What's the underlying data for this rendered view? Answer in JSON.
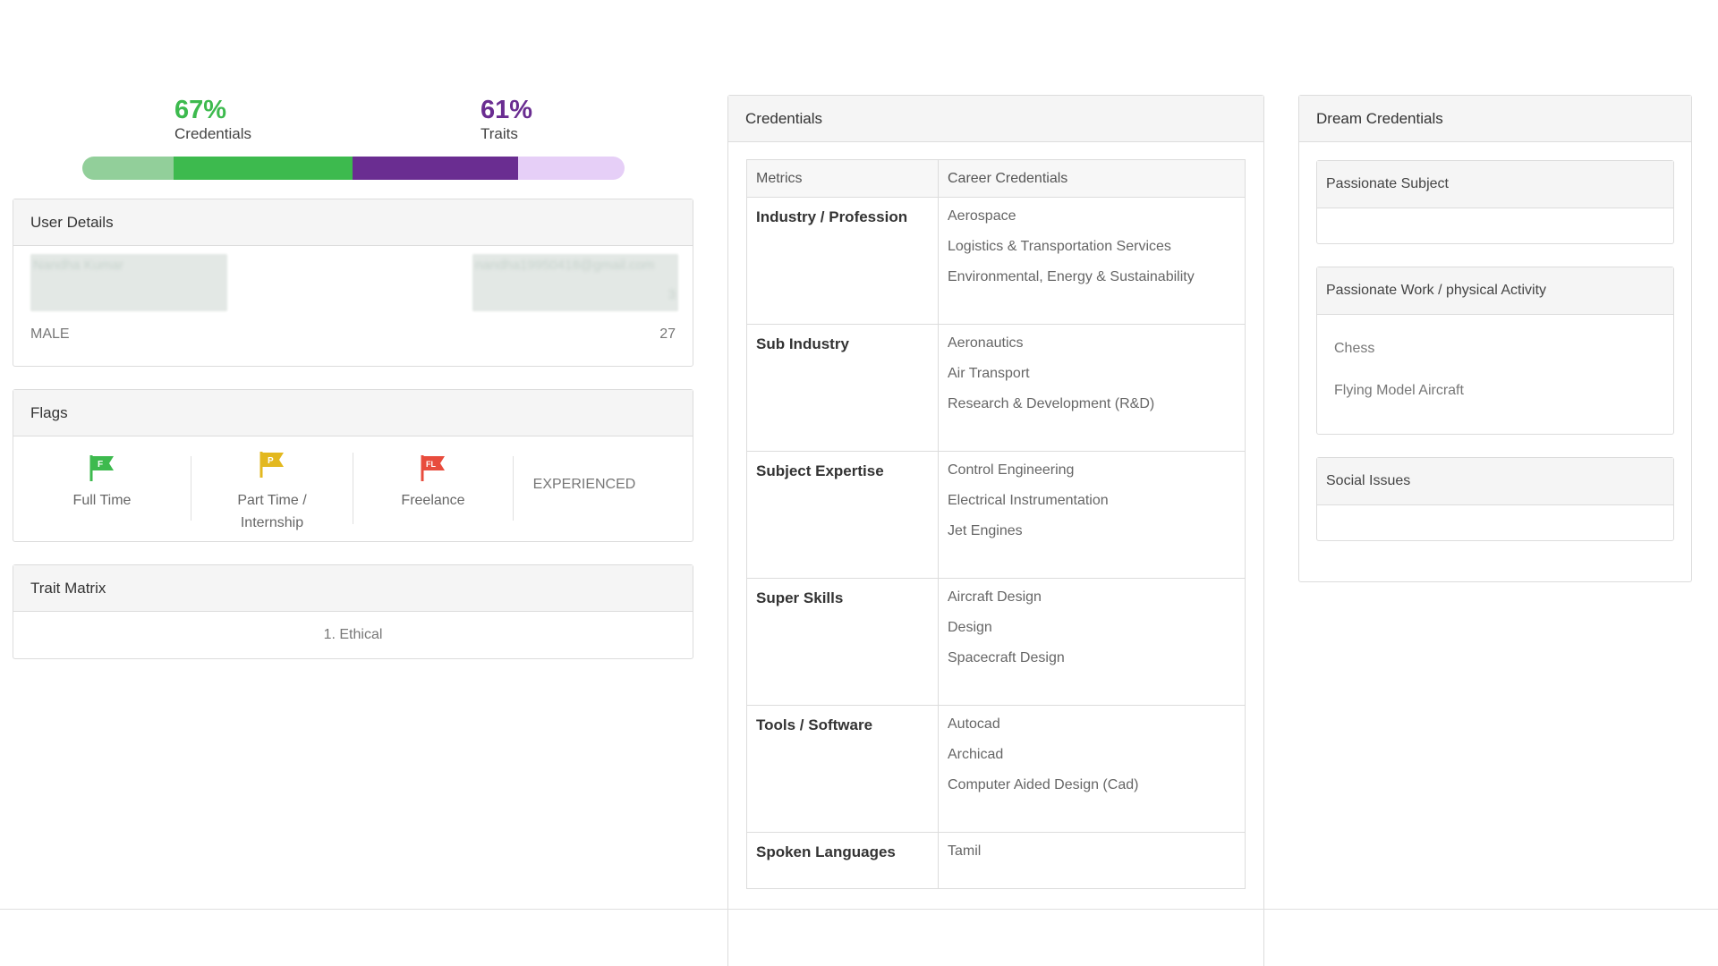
{
  "progress": {
    "credentials": {
      "percent": "67%",
      "label": "Credentials",
      "value": 67,
      "color": "#3dba4e"
    },
    "traits": {
      "percent": "61%",
      "label": "Traits",
      "value": 61,
      "color": "#6a2d91"
    }
  },
  "user_details": {
    "title": "User Details",
    "name": "Nandha Kumar",
    "email": "nandha19950418@gmail.com",
    "phone_tail": "3",
    "gender": "MALE",
    "age": "27"
  },
  "flags": {
    "title": "Flags",
    "items": [
      {
        "icon": "flag-f-icon",
        "letter": "F",
        "color": "#3dba4e",
        "label": "Full Time"
      },
      {
        "icon": "flag-p-icon",
        "letter": "P",
        "color": "#e3b81f",
        "label": "Part Time / Internship"
      },
      {
        "icon": "flag-fl-icon",
        "letter": "FL",
        "color": "#e84c3d",
        "label": "Freelance"
      }
    ],
    "experience": "EXPERIENCED"
  },
  "trait_matrix": {
    "title": "Trait Matrix",
    "items": [
      "1. Ethical"
    ]
  },
  "credentials": {
    "title": "Credentials",
    "headers": [
      "Metrics",
      "Career Credentials"
    ],
    "rows": [
      {
        "metric": "Industry / Profession",
        "values": [
          "Aerospace",
          "Logistics & Transportation Services",
          "Environmental, Energy & Sustainability"
        ]
      },
      {
        "metric": "Sub Industry",
        "values": [
          "Aeronautics",
          "Air Transport",
          "Research & Development (R&D)"
        ]
      },
      {
        "metric": "Subject Expertise",
        "values": [
          "Control Engineering",
          "Electrical Instrumentation",
          "Jet Engines"
        ]
      },
      {
        "metric": "Super Skills",
        "values": [
          "Aircraft Design",
          "Design",
          "Spacecraft Design"
        ]
      },
      {
        "metric": "Tools / Software",
        "values": [
          "Autocad",
          "Archicad",
          "Computer Aided Design (Cad)"
        ]
      },
      {
        "metric": "Spoken Languages",
        "values": [
          "Tamil"
        ]
      }
    ]
  },
  "dream_credentials": {
    "title": "Dream Credentials",
    "sections": [
      {
        "title": "Passionate Subject",
        "items": []
      },
      {
        "title": "Passionate Work / physical Activity",
        "items": [
          "Chess",
          "Flying Model Aircraft"
        ]
      },
      {
        "title": "Social Issues",
        "items": []
      }
    ]
  }
}
